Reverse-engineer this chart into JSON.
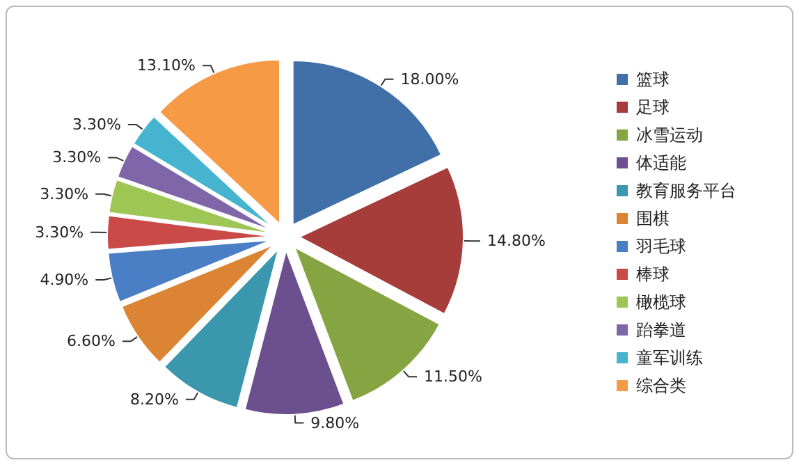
{
  "chart_data": {
    "type": "pie",
    "categories": [
      "篮球",
      "足球",
      "冰雪运动",
      "体适能",
      "教育服务平台",
      "围棋",
      "羽毛球",
      "棒球",
      "橄榄球",
      "跆拳道",
      "童军训练",
      "综合类"
    ],
    "values": [
      18.0,
      14.8,
      11.5,
      9.8,
      8.2,
      6.6,
      4.9,
      3.3,
      3.3,
      3.3,
      3.3,
      13.1
    ],
    "value_labels": [
      "18.00%",
      "14.80%",
      "11.50%",
      "9.80%",
      "8.20%",
      "6.60%",
      "4.90%",
      "3.30%",
      "3.30%",
      "3.30%",
      "3.30%",
      "13.10%"
    ],
    "colors": [
      "#4170a8",
      "#a63d3b",
      "#86a542",
      "#6b4f8e",
      "#3a97ad",
      "#db8433",
      "#4a7fc6",
      "#c94a47",
      "#9dc655",
      "#7f66a9",
      "#46b4cf",
      "#f79a46"
    ],
    "legend": "right"
  }
}
